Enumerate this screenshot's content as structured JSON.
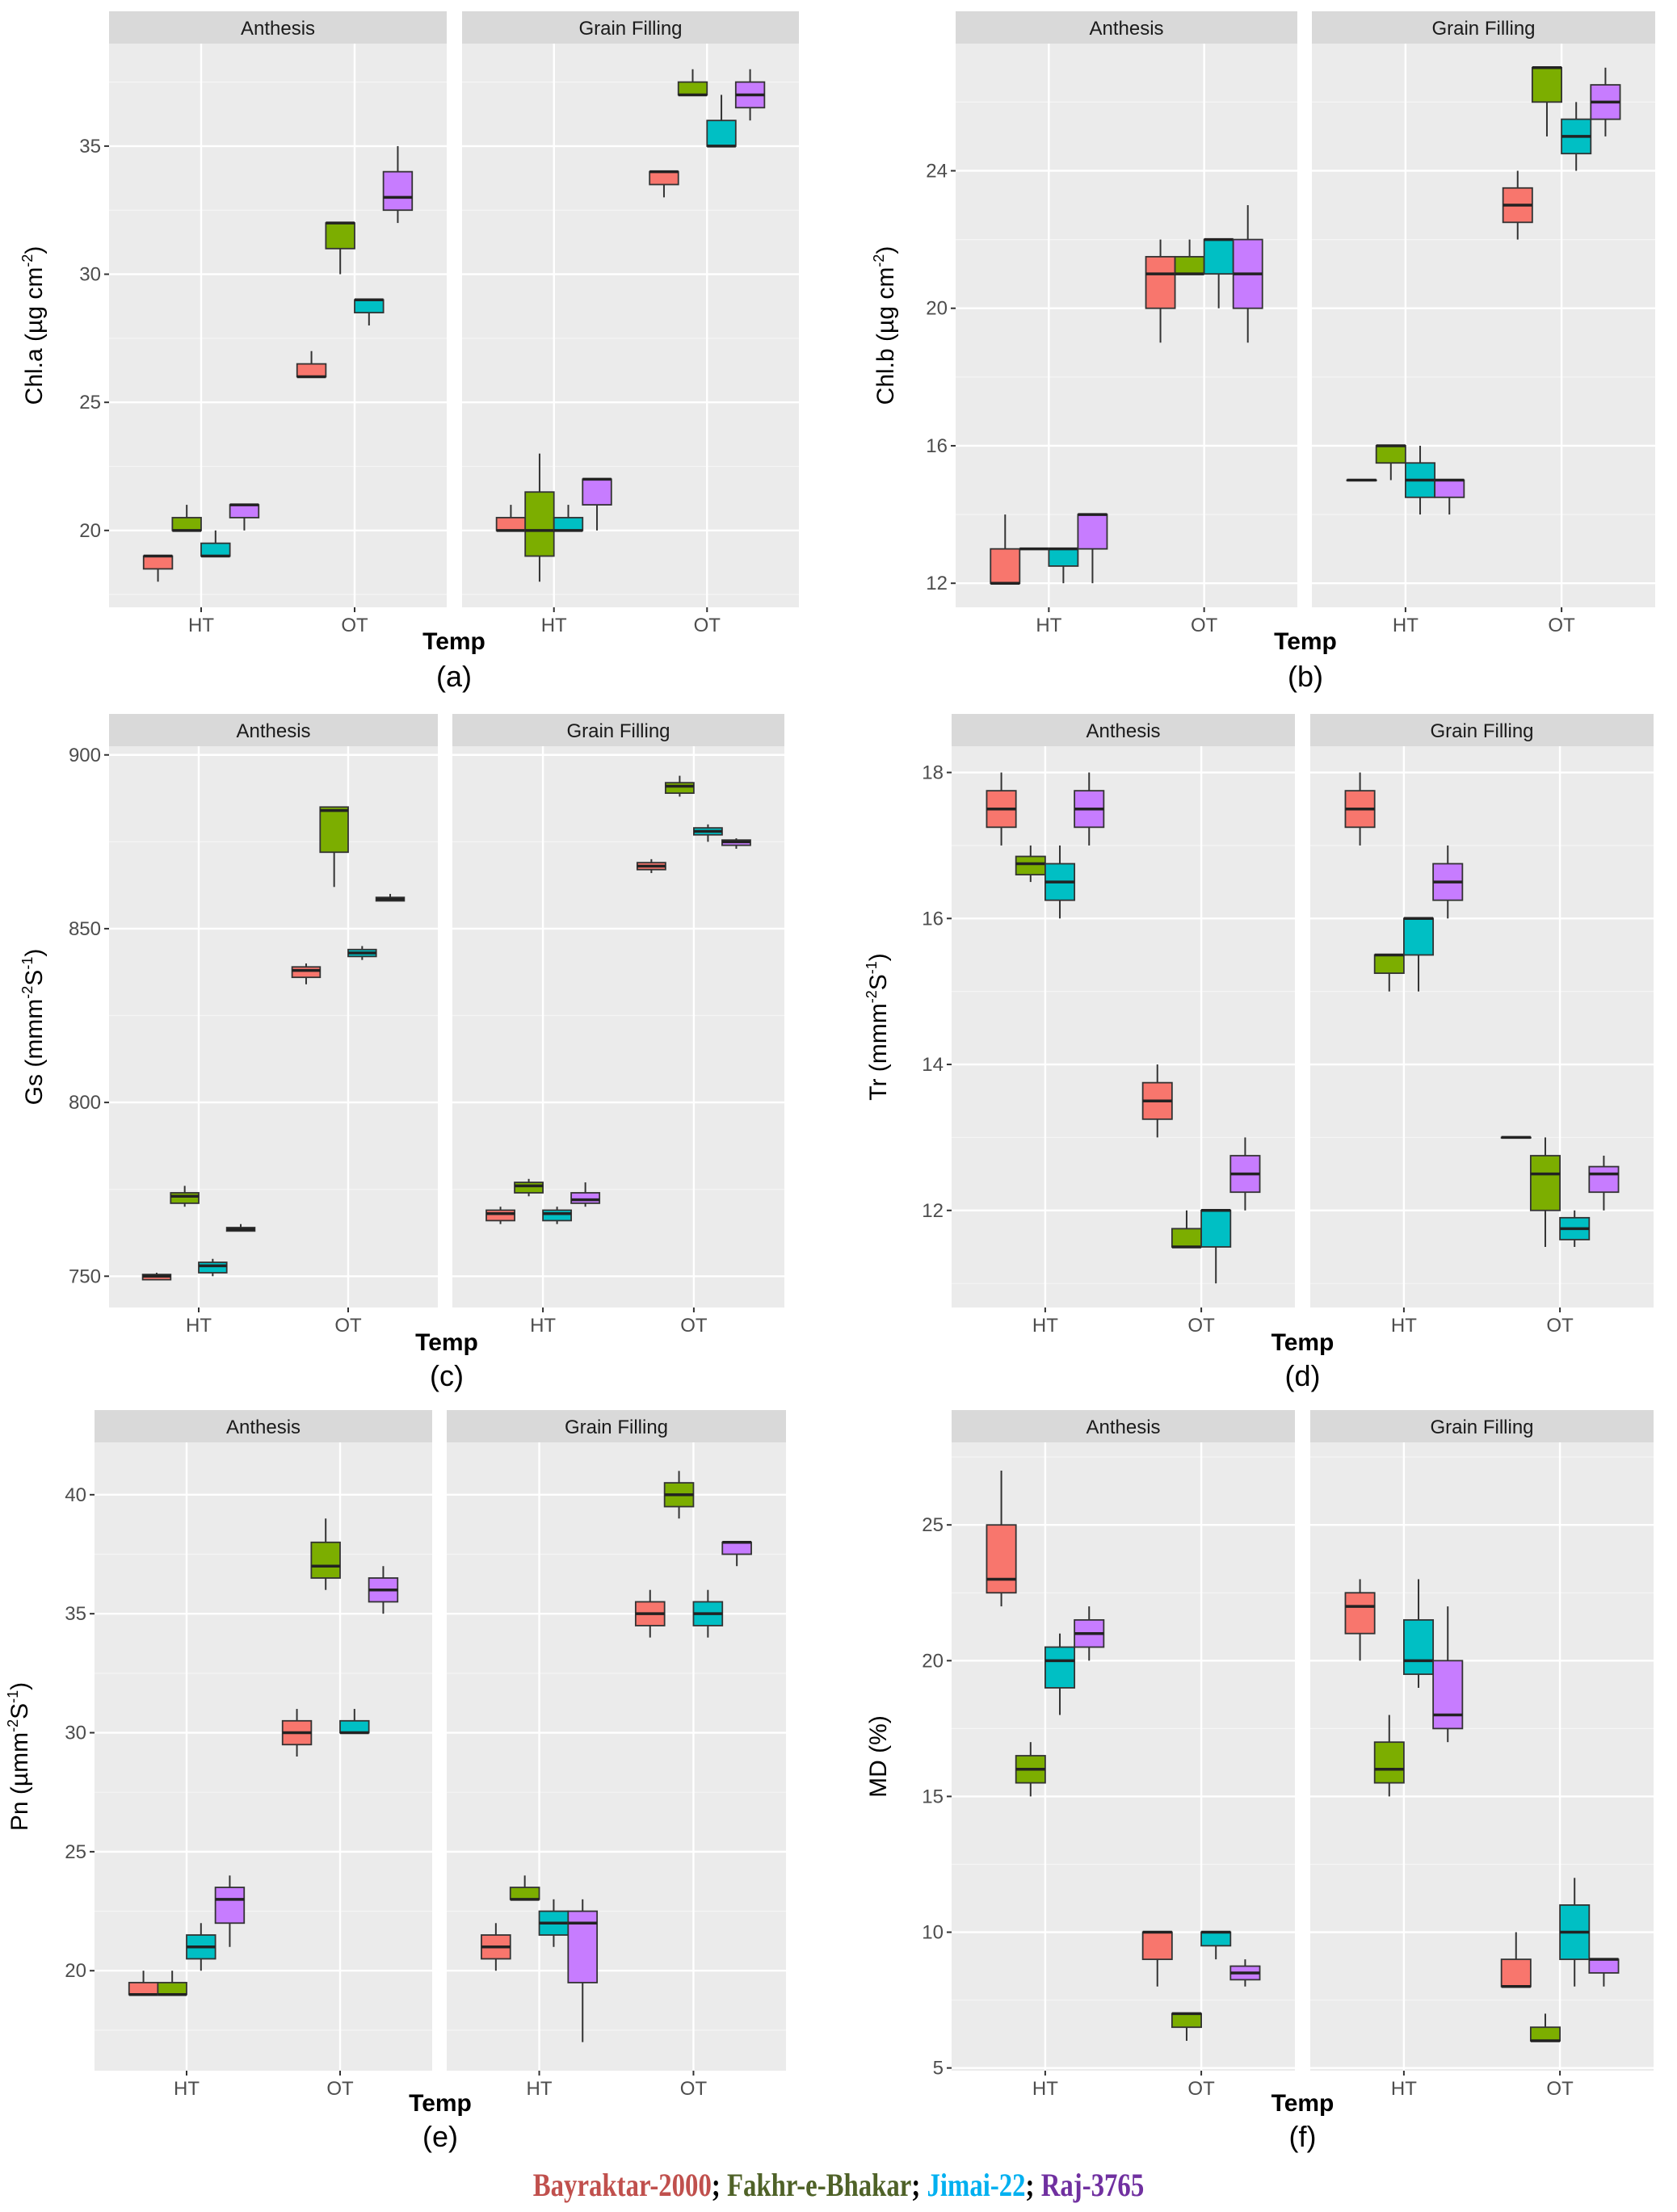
{
  "legend": [
    {
      "name": "Bayraktar-2000",
      "text_color": "#C0504D",
      "fill": "#F8766D"
    },
    {
      "name": "Fakhr-e-Bhakar",
      "text_color": "#4F6228",
      "fill": "#7CAE00"
    },
    {
      "name": "Jimai-22",
      "text_color": "#00B0F0",
      "fill": "#00BFC4"
    },
    {
      "name": "Raj-3765",
      "text_color": "#7030A0",
      "fill": "#C77CFF"
    }
  ],
  "legend_separator": "; ",
  "chart_data": [
    {
      "type": "boxplot",
      "panel_label": "(a)",
      "xlabel": "Temp",
      "ylabel_parts": [
        "Chl.a  (µg cm",
        "-2",
        ")"
      ],
      "categories": [
        "HT",
        "OT"
      ],
      "ylim": [
        17,
        39
      ],
      "yticks": [
        20,
        25,
        30,
        35
      ],
      "minor_ticks": [
        17.5,
        22.5,
        27.5,
        32.5,
        37.5
      ],
      "facets": [
        {
          "name": "Anthesis",
          "HT": [
            [
              18,
              18.5,
              19,
              19,
              19
            ],
            [
              20,
              20,
              20,
              20.5,
              21
            ],
            [
              19,
              19,
              19,
              19.5,
              20
            ],
            [
              20,
              20.5,
              21,
              21,
              21
            ]
          ],
          "OT": [
            [
              26,
              26,
              26,
              26.5,
              27
            ],
            [
              30,
              31,
              32,
              32,
              32
            ],
            [
              28,
              28.5,
              29,
              29,
              29
            ],
            [
              32,
              32.5,
              33,
              34,
              35
            ]
          ]
        },
        {
          "name": "Grain Filling",
          "HT": [
            [
              20,
              20,
              20,
              20.5,
              21
            ],
            [
              18,
              19,
              20,
              21.5,
              23
            ],
            [
              20,
              20,
              20,
              20.5,
              21
            ],
            [
              20,
              21,
              22,
              22,
              22
            ]
          ],
          "OT": [
            [
              33,
              33.5,
              34,
              34,
              34
            ],
            [
              37,
              37,
              37,
              37.5,
              38
            ],
            [
              35,
              35,
              35,
              36,
              37
            ],
            [
              36,
              36.5,
              37,
              37.5,
              38
            ]
          ]
        }
      ]
    },
    {
      "type": "boxplot",
      "panel_label": "(b)",
      "xlabel": "Temp",
      "ylabel_parts": [
        "Chl.b (µg cm",
        "-2",
        ")"
      ],
      "categories": [
        "HT",
        "OT"
      ],
      "ylim": [
        11.3,
        27.7
      ],
      "yticks": [
        12,
        16,
        20,
        24
      ],
      "minor_ticks": [
        14,
        18,
        22,
        26
      ],
      "facets": [
        {
          "name": "Anthesis",
          "HT": [
            [
              12,
              12,
              12,
              13,
              14
            ],
            [
              13,
              13,
              13,
              13,
              13
            ],
            [
              12,
              12.5,
              13,
              13,
              13
            ],
            [
              12,
              13,
              14,
              14,
              14
            ]
          ],
          "OT": [
            [
              19,
              20,
              21,
              21.5,
              22
            ],
            [
              21,
              21,
              21,
              21.5,
              22
            ],
            [
              20,
              21,
              22,
              22,
              22
            ],
            [
              19,
              20,
              21,
              22,
              23
            ]
          ]
        },
        {
          "name": "Grain Filling",
          "HT": [
            [
              15,
              15,
              15,
              15,
              15
            ],
            [
              15,
              15.5,
              16,
              16,
              16
            ],
            [
              14,
              14.5,
              15,
              15.5,
              16
            ],
            [
              14,
              14.5,
              15,
              15,
              15
            ]
          ],
          "OT": [
            [
              22,
              22.5,
              23,
              23.5,
              24
            ],
            [
              25,
              26,
              27,
              27,
              27
            ],
            [
              24,
              24.5,
              25,
              25.5,
              26
            ],
            [
              25,
              25.5,
              26,
              26.5,
              27
            ]
          ]
        }
      ]
    },
    {
      "type": "boxplot",
      "panel_label": "(c)",
      "xlabel": "Temp",
      "ylabel_parts": [
        "Gs  (mmm",
        "-2",
        "S",
        "-1",
        ")"
      ],
      "categories": [
        "HT",
        "OT"
      ],
      "ylim": [
        741,
        902.5
      ],
      "yticks": [
        750,
        800,
        850,
        900
      ],
      "minor_ticks": [
        775,
        825,
        875
      ],
      "facets": [
        {
          "name": "Anthesis",
          "HT": [
            [
              749,
              749,
              750,
              750.5,
              751
            ],
            [
              770,
              771,
              773,
              774,
              776
            ],
            [
              750,
              751,
              753,
              754,
              755
            ],
            [
              763,
              763,
              763.5,
              764,
              765
            ]
          ],
          "OT": [
            [
              834,
              836,
              838,
              839,
              840
            ],
            [
              862,
              872,
              884,
              885,
              885
            ],
            [
              841,
              842,
              843,
              844,
              845
            ],
            [
              858,
              858,
              858.5,
              859,
              860
            ]
          ]
        },
        {
          "name": "Grain Filling",
          "HT": [
            [
              765,
              766,
              768,
              769,
              770
            ],
            [
              773,
              774,
              776,
              777,
              778
            ],
            [
              765,
              766,
              768,
              769,
              770
            ],
            [
              770,
              771,
              772,
              774,
              777
            ]
          ],
          "OT": [
            [
              866,
              867,
              868,
              869,
              870
            ],
            [
              888,
              889,
              891,
              892,
              894
            ],
            [
              875,
              877,
              878,
              879,
              880
            ],
            [
              873,
              874,
              875,
              875.5,
              876
            ]
          ]
        }
      ]
    },
    {
      "type": "boxplot",
      "panel_label": "(d)",
      "xlabel": "Temp",
      "ylabel_parts": [
        "Tr (mmm",
        "-2",
        "S",
        "-1",
        ")"
      ],
      "categories": [
        "HT",
        "OT"
      ],
      "ylim": [
        10.67,
        18.36
      ],
      "yticks": [
        12,
        14,
        16,
        18
      ],
      "minor_ticks": [
        11,
        13,
        15,
        17
      ],
      "facets": [
        {
          "name": "Anthesis",
          "HT": [
            [
              17,
              17.25,
              17.5,
              17.75,
              18
            ],
            [
              16.5,
              16.6,
              16.75,
              16.85,
              17
            ],
            [
              16,
              16.25,
              16.5,
              16.75,
              17
            ],
            [
              17,
              17.25,
              17.5,
              17.75,
              18
            ]
          ],
          "OT": [
            [
              13,
              13.25,
              13.5,
              13.75,
              14
            ],
            [
              11.5,
              11.5,
              11.5,
              11.75,
              12
            ],
            [
              11,
              11.5,
              12,
              12,
              12
            ],
            [
              12,
              12.25,
              12.5,
              12.75,
              13
            ]
          ]
        },
        {
          "name": "Grain Filling",
          "HT": [
            [
              17,
              17.25,
              17.5,
              17.75,
              18
            ],
            [
              15,
              15.25,
              15.5,
              15.5,
              15.5
            ],
            [
              15,
              15.5,
              16,
              16,
              16
            ],
            [
              16,
              16.25,
              16.5,
              16.75,
              17
            ]
          ],
          "OT": [
            [
              13,
              13,
              13,
              13,
              13
            ],
            [
              11.5,
              12,
              12.5,
              12.75,
              13
            ],
            [
              11.5,
              11.6,
              11.75,
              11.9,
              12
            ],
            [
              12,
              12.25,
              12.5,
              12.6,
              12.75
            ]
          ]
        }
      ]
    },
    {
      "type": "boxplot",
      "panel_label": "(e)",
      "xlabel": "Temp",
      "ylabel_parts": [
        "Pn  (µmm",
        "-2",
        "S",
        "-1",
        ")"
      ],
      "categories": [
        "HT",
        "OT"
      ],
      "ylim": [
        15.8,
        42.2
      ],
      "yticks": [
        20,
        25,
        30,
        35,
        40
      ],
      "minor_ticks": [
        17.5,
        22.5,
        27.5,
        32.5,
        37.5
      ],
      "facets": [
        {
          "name": "Anthesis",
          "HT": [
            [
              19,
              19,
              19,
              19.5,
              20
            ],
            [
              19,
              19,
              19,
              19.5,
              20
            ],
            [
              20,
              20.5,
              21,
              21.5,
              22
            ],
            [
              21,
              22,
              23,
              23.5,
              24
            ]
          ],
          "OT": [
            [
              29,
              29.5,
              30,
              30.5,
              31
            ],
            [
              36,
              36.5,
              37,
              38,
              39
            ],
            [
              30,
              30,
              30,
              30.5,
              31
            ],
            [
              35,
              35.5,
              36,
              36.5,
              37
            ]
          ]
        },
        {
          "name": "Grain Filling",
          "HT": [
            [
              20,
              20.5,
              21,
              21.5,
              22
            ],
            [
              23,
              23,
              23,
              23.5,
              24
            ],
            [
              21,
              21.5,
              22,
              22.5,
              23
            ],
            [
              17,
              19.5,
              22,
              22.5,
              23
            ]
          ],
          "OT": [
            [
              34,
              34.5,
              35,
              35.5,
              36
            ],
            [
              39,
              39.5,
              40,
              40.5,
              41
            ],
            [
              34,
              34.5,
              35,
              35.5,
              36
            ],
            [
              37,
              37.5,
              38,
              38,
              38
            ]
          ]
        }
      ]
    },
    {
      "type": "boxplot",
      "panel_label": "(f)",
      "xlabel": "Temp",
      "ylabel_parts": [
        "MD (%)"
      ],
      "categories": [
        "HT",
        "OT"
      ],
      "ylim": [
        4.9,
        28.04
      ],
      "yticks": [
        5,
        10,
        15,
        20,
        25
      ],
      "minor_ticks": [
        7.5,
        12.5,
        17.5,
        22.5,
        27.5
      ],
      "facets": [
        {
          "name": "Anthesis",
          "HT": [
            [
              22,
              22.5,
              23,
              25,
              27
            ],
            [
              15,
              15.5,
              16,
              16.5,
              17
            ],
            [
              18,
              19,
              20,
              20.5,
              21
            ],
            [
              20,
              20.5,
              21,
              21.5,
              22
            ]
          ],
          "OT": [
            [
              8,
              9,
              10,
              10,
              10
            ],
            [
              6,
              6.5,
              7,
              7,
              7
            ],
            [
              9,
              9.5,
              10,
              10,
              10
            ],
            [
              8,
              8.25,
              8.5,
              8.75,
              9
            ]
          ]
        },
        {
          "name": "Grain Filling",
          "HT": [
            [
              20,
              21,
              22,
              22.5,
              23
            ],
            [
              15,
              15.5,
              16,
              17,
              18
            ],
            [
              19,
              19.5,
              20,
              21.5,
              23
            ],
            [
              17,
              17.5,
              18,
              20,
              22
            ]
          ],
          "OT": [
            [
              8,
              8,
              8,
              9,
              10
            ],
            [
              6,
              6,
              6,
              6.5,
              7
            ],
            [
              8,
              9,
              10,
              11,
              12
            ],
            [
              8,
              8.5,
              9,
              9,
              9
            ]
          ]
        }
      ]
    }
  ]
}
